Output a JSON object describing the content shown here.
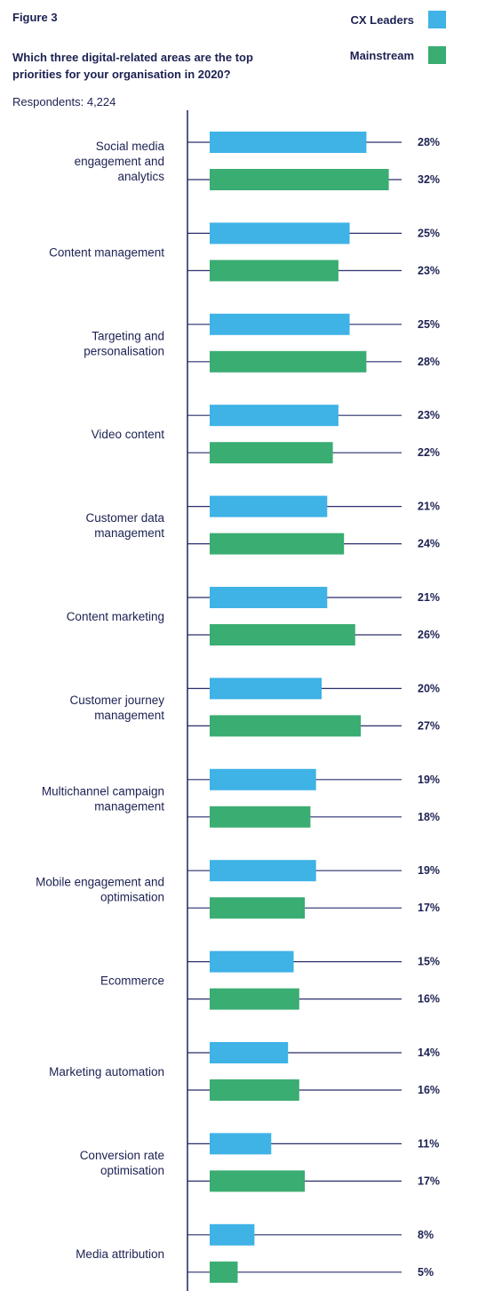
{
  "figure_label": "Figure 3",
  "chart_data": {
    "type": "bar",
    "orientation": "horizontal",
    "title": "Which three digital-related areas are the top priorities for your organisation in 2020?",
    "subtitle": "Respondents: 4,224",
    "value_suffix": "%",
    "legend_position": "top-right",
    "colors": {
      "CX Leaders": "#3fb2e6",
      "Mainstream": "#3aad72",
      "axis": "#2a2f6b"
    },
    "categories": [
      "Social media\nengagement and\nanalytics",
      "Content management",
      "Targeting and\npersonalisation",
      "Video content",
      "Customer data\nmanagement",
      "Content marketing",
      "Customer journey\nmanagement",
      "Multichannel campaign\nmanagement",
      "Mobile engagement and\noptimisation",
      "Ecommerce",
      "Marketing automation",
      "Conversion rate\noptimisation",
      "Media attribution"
    ],
    "series": [
      {
        "name": "CX Leaders",
        "values": [
          28,
          25,
          25,
          23,
          21,
          21,
          20,
          19,
          19,
          15,
          14,
          11,
          8
        ]
      },
      {
        "name": "Mainstream",
        "values": [
          32,
          23,
          28,
          22,
          24,
          26,
          27,
          18,
          17,
          16,
          16,
          17,
          5
        ]
      }
    ]
  }
}
